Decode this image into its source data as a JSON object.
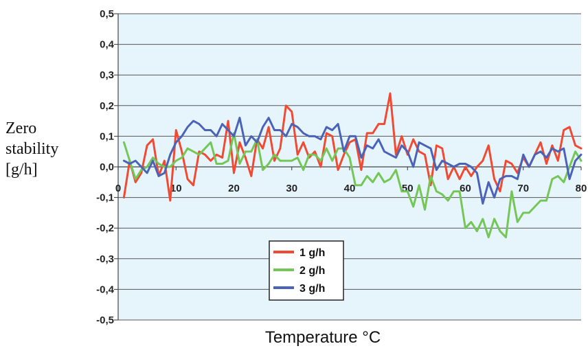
{
  "chart_data": {
    "type": "line",
    "title": "",
    "xlabel": "Temperature °C",
    "ylabel_lines": [
      "Zero",
      "stability",
      "[g/h]"
    ],
    "xlim": [
      0,
      80
    ],
    "ylim": [
      -0.5,
      0.5
    ],
    "x_ticks": [
      "0",
      "10",
      "20",
      "30",
      "40",
      "50",
      "60",
      "70",
      "80"
    ],
    "y_ticks": [
      "0,5",
      "0,4",
      "0,3",
      "0,2",
      "0,1",
      "0,0",
      "-0,1",
      "-0,2",
      "-0,3",
      "-0,4",
      "-0,5"
    ],
    "grid": true,
    "legend_position": "lower-center",
    "colors": {
      "plot_bg": "#e6f4fb",
      "grid": "#555555",
      "red": "#f04a32",
      "green": "#74c657",
      "blue": "#4a63b8"
    },
    "series": [
      {
        "name": "1 g/h",
        "color": "#f04a32",
        "x": [
          1,
          2,
          3,
          4,
          5,
          6,
          7,
          8,
          9,
          10,
          11,
          12,
          13,
          14,
          15,
          16,
          17,
          18,
          19,
          20,
          21,
          22,
          23,
          24,
          25,
          26,
          27,
          28,
          29,
          30,
          31,
          32,
          33,
          34,
          35,
          36,
          37,
          38,
          39,
          40,
          41,
          42,
          43,
          44,
          45,
          46,
          47,
          48,
          49,
          50,
          51,
          52,
          53,
          54,
          55,
          56,
          57,
          58,
          59,
          60,
          61,
          62,
          63,
          64,
          65,
          66,
          67,
          68,
          69,
          70,
          71,
          72,
          73,
          74,
          75,
          76,
          77,
          78,
          79,
          80
        ],
        "y": [
          -0.1,
          0.02,
          -0.05,
          -0.02,
          0.07,
          0.09,
          -0.03,
          0.02,
          -0.11,
          0.12,
          0.05,
          -0.04,
          -0.06,
          0.05,
          0.04,
          0.02,
          0.04,
          0.03,
          0.15,
          -0.02,
          0.08,
          0.03,
          -0.03,
          0.09,
          0.06,
          0.13,
          0.02,
          0.06,
          0.2,
          0.18,
          0.04,
          0.08,
          0.03,
          0.05,
          0.0,
          0.11,
          0.1,
          -0.01,
          0.04,
          0.08,
          0.09,
          -0.01,
          0.11,
          0.11,
          0.14,
          0.14,
          0.24,
          0.04,
          0.1,
          0.04,
          0.09,
          0.05,
          0.04,
          -0.06,
          0.07,
          0.06,
          -0.04,
          0.0,
          -0.04,
          0.0,
          -0.03,
          0.0,
          0.02,
          0.07,
          -0.04,
          -0.08,
          0.02,
          0.01,
          -0.02,
          0.03,
          0.0,
          0.04,
          0.08,
          0.01,
          0.07,
          0.02,
          0.12,
          0.13,
          0.07,
          0.06
        ]
      },
      {
        "name": "2 g/h",
        "color": "#74c657",
        "x": [
          1,
          2,
          3,
          4,
          5,
          6,
          7,
          8,
          9,
          10,
          11,
          12,
          13,
          14,
          15,
          16,
          17,
          18,
          19,
          20,
          21,
          22,
          23,
          24,
          25,
          26,
          27,
          28,
          29,
          30,
          31,
          32,
          33,
          34,
          35,
          36,
          37,
          38,
          39,
          40,
          41,
          42,
          43,
          44,
          45,
          46,
          47,
          48,
          49,
          50,
          51,
          52,
          53,
          54,
          55,
          56,
          57,
          58,
          59,
          60,
          61,
          62,
          63,
          64,
          65,
          66,
          67,
          68,
          69,
          70,
          71,
          72,
          73,
          74,
          75,
          76,
          77,
          78,
          79,
          80
        ],
        "y": [
          0.08,
          0.02,
          -0.04,
          -0.01,
          0.0,
          0.03,
          0.01,
          0.0,
          0.0,
          0.02,
          0.03,
          0.06,
          0.05,
          0.04,
          0.06,
          0.08,
          0.01,
          0.01,
          0.02,
          0.11,
          0.01,
          0.05,
          0.05,
          0.09,
          -0.01,
          0.01,
          0.04,
          0.02,
          0.02,
          0.02,
          0.03,
          -0.01,
          0.04,
          0.04,
          0.02,
          0.06,
          0.02,
          0.06,
          0.06,
          0.03,
          -0.06,
          -0.06,
          -0.03,
          -0.05,
          -0.02,
          -0.05,
          -0.04,
          -0.01,
          -0.08,
          -0.08,
          -0.13,
          -0.06,
          -0.14,
          -0.03,
          -0.08,
          -0.09,
          -0.11,
          -0.08,
          -0.08,
          -0.2,
          -0.18,
          -0.21,
          -0.17,
          -0.23,
          -0.17,
          -0.21,
          -0.23,
          -0.08,
          -0.18,
          -0.15,
          -0.15,
          -0.13,
          -0.11,
          -0.11,
          -0.04,
          -0.03,
          -0.05,
          0.0,
          0.05,
          0.02
        ]
      },
      {
        "name": "3 g/h",
        "color": "#4a63b8",
        "x": [
          1,
          2,
          3,
          4,
          5,
          6,
          7,
          8,
          9,
          10,
          11,
          12,
          13,
          14,
          15,
          16,
          17,
          18,
          19,
          20,
          21,
          22,
          23,
          24,
          25,
          26,
          27,
          28,
          29,
          30,
          31,
          32,
          33,
          34,
          35,
          36,
          37,
          38,
          39,
          40,
          41,
          42,
          43,
          44,
          45,
          46,
          47,
          48,
          49,
          50,
          51,
          52,
          53,
          54,
          55,
          56,
          57,
          58,
          59,
          60,
          61,
          62,
          63,
          64,
          65,
          66,
          67,
          68,
          69,
          70,
          71,
          72,
          73,
          74,
          75,
          76,
          77,
          78,
          79,
          80
        ],
        "y": [
          0.02,
          0.01,
          0.02,
          0.0,
          -0.02,
          0.02,
          -0.03,
          -0.02,
          0.04,
          0.08,
          0.1,
          0.13,
          0.15,
          0.14,
          0.12,
          0.12,
          0.1,
          0.14,
          0.12,
          0.1,
          0.16,
          0.07,
          0.1,
          0.08,
          0.13,
          0.16,
          0.12,
          0.12,
          0.1,
          0.14,
          0.13,
          0.11,
          0.1,
          0.1,
          0.09,
          0.13,
          0.12,
          0.14,
          0.05,
          0.1,
          0.1,
          0.03,
          0.07,
          0.06,
          0.09,
          0.05,
          0.04,
          0.03,
          0.07,
          0.05,
          0.0,
          0.08,
          0.07,
          0.06,
          -0.01,
          0.02,
          0.01,
          0.0,
          0.01,
          0.01,
          0.0,
          -0.02,
          -0.12,
          -0.05,
          -0.1,
          -0.04,
          -0.03,
          -0.03,
          -0.04,
          0.04,
          0.0,
          0.04,
          0.05,
          0.03,
          0.06,
          0.05,
          0.06,
          -0.04,
          0.02,
          0.04
        ]
      }
    ]
  }
}
